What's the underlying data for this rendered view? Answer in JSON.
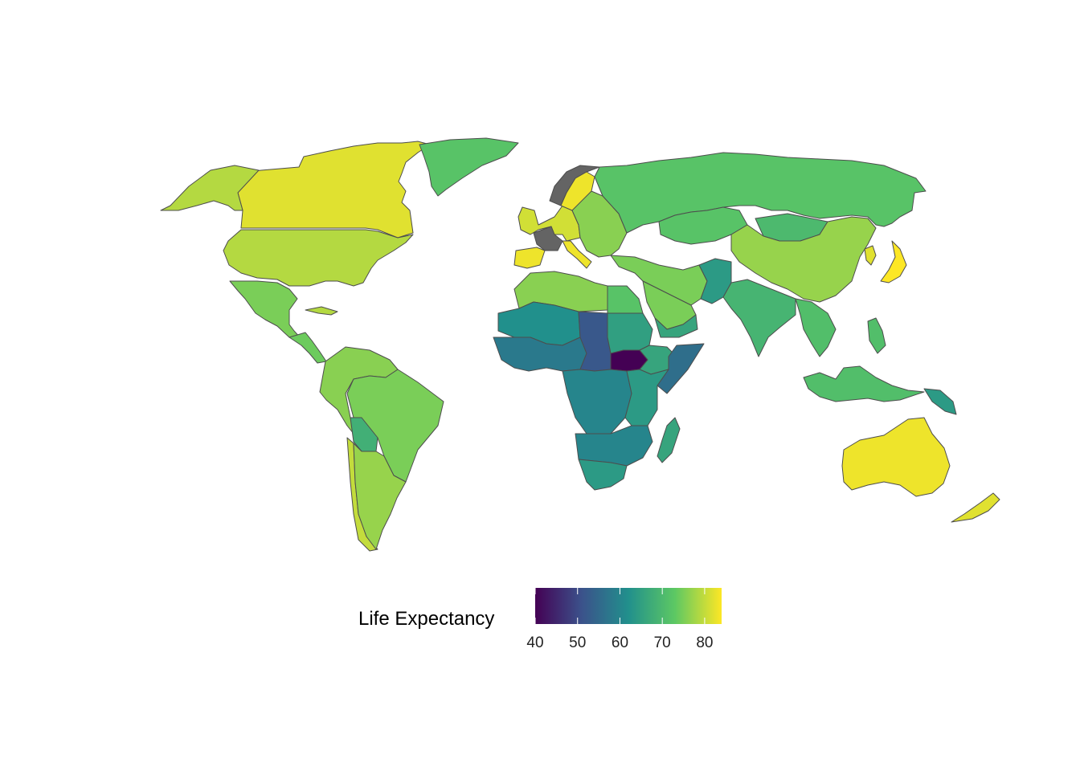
{
  "legend": {
    "title": "Life Expectancy",
    "min": 40,
    "max": 84,
    "ticks": [
      {
        "value": 40,
        "label": "40"
      },
      {
        "value": 50,
        "label": "50"
      },
      {
        "value": 60,
        "label": "60"
      },
      {
        "value": 70,
        "label": "70"
      },
      {
        "value": 80,
        "label": "80"
      }
    ],
    "palette": [
      "#440154",
      "#3b528b",
      "#21908c",
      "#5dc863",
      "#fde725"
    ],
    "na_color": "#646464"
  },
  "regions": [
    {
      "id": "canada",
      "value": 82
    },
    {
      "id": "alaska",
      "value": 79
    },
    {
      "id": "usa",
      "value": 79
    },
    {
      "id": "greenland",
      "value": 72
    },
    {
      "id": "mexico",
      "value": 75
    },
    {
      "id": "central-america",
      "value": 74
    },
    {
      "id": "cuba",
      "value": 79
    },
    {
      "id": "south-america",
      "value": 76
    },
    {
      "id": "brazil",
      "value": 75
    },
    {
      "id": "bolivia",
      "value": 68
    },
    {
      "id": "chile",
      "value": 80
    },
    {
      "id": "argentina",
      "value": 77
    },
    {
      "id": "western-europe",
      "value": 81
    },
    {
      "id": "france",
      "value": null
    },
    {
      "id": "norway",
      "value": null
    },
    {
      "id": "sweden",
      "value": 83
    },
    {
      "id": "spain",
      "value": 83
    },
    {
      "id": "italy",
      "value": 83
    },
    {
      "id": "eastern-europe",
      "value": 76
    },
    {
      "id": "russia",
      "value": 72
    },
    {
      "id": "kazakhstan",
      "value": 72
    },
    {
      "id": "china",
      "value": 77
    },
    {
      "id": "mongolia",
      "value": 70
    },
    {
      "id": "japan",
      "value": 84
    },
    {
      "id": "korea",
      "value": 82
    },
    {
      "id": "middle-east",
      "value": 75
    },
    {
      "id": "saudi-arabia",
      "value": 75
    },
    {
      "id": "yemen",
      "value": 66
    },
    {
      "id": "pakistan-afghanistan",
      "value": 64
    },
    {
      "id": "india",
      "value": 69
    },
    {
      "id": "se-asia",
      "value": 71
    },
    {
      "id": "indonesia",
      "value": 71
    },
    {
      "id": "philippines",
      "value": 71
    },
    {
      "id": "papua-new-guinea",
      "value": 64
    },
    {
      "id": "australia",
      "value": 83
    },
    {
      "id": "new-zealand",
      "value": 82
    },
    {
      "id": "north-africa",
      "value": 76
    },
    {
      "id": "egypt",
      "value": 72
    },
    {
      "id": "west-africa",
      "value": 58
    },
    {
      "id": "mauritania-mali",
      "value": 62
    },
    {
      "id": "chad-car",
      "value": 52
    },
    {
      "id": "sudan",
      "value": 65
    },
    {
      "id": "south-sudan",
      "value": 40
    },
    {
      "id": "ethiopia",
      "value": 66
    },
    {
      "id": "somalia",
      "value": 56
    },
    {
      "id": "central-africa",
      "value": 60
    },
    {
      "id": "east-africa",
      "value": 64
    },
    {
      "id": "southern-africa",
      "value": 60
    },
    {
      "id": "south-africa",
      "value": 64
    },
    {
      "id": "madagascar",
      "value": 66
    }
  ]
}
